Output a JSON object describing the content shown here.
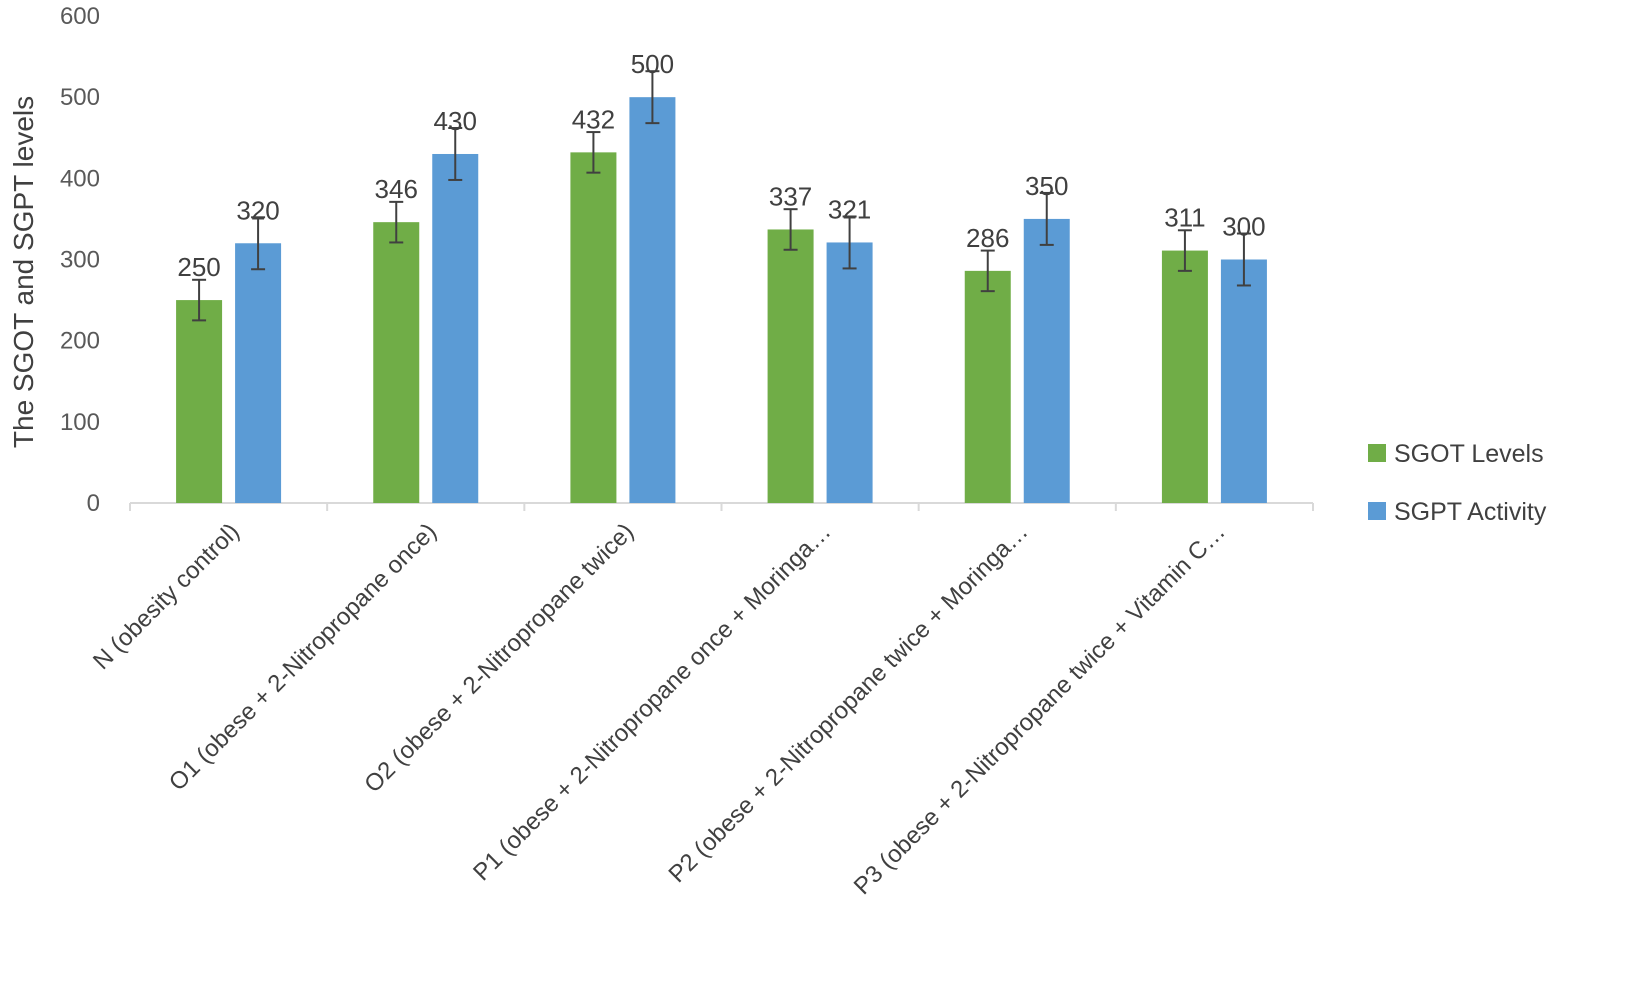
{
  "chart_data": {
    "type": "bar",
    "ylabel": "The SGOT and SGPT levels",
    "xlabel": "",
    "ylim": [
      0,
      600
    ],
    "yticks": [
      0,
      100,
      200,
      300,
      400,
      500,
      600
    ],
    "grid": false,
    "legend_position": "right",
    "categories": [
      "N (obesity control)",
      "O1 (obese + 2-Nitropropane once)",
      "O2 (obese + 2-Nitropropane twice)",
      "P1 (obese + 2-Nitropropane once + Moringa…",
      "P2 (obese + 2-Nitropropane twice + Moringa…",
      "P3 (obese + 2-Nitropropane twice + Vitamin C…"
    ],
    "series": [
      {
        "name": "SGOT Levels",
        "color": "#70ad47",
        "values": [
          250,
          346,
          432,
          337,
          286,
          311
        ],
        "labels": [
          "250",
          "346",
          "432",
          "337",
          "286",
          "311"
        ],
        "error": [
          25,
          25,
          25,
          25,
          25,
          25
        ]
      },
      {
        "name": "SGPT Activity",
        "color": "#5b9bd5",
        "values": [
          320,
          430,
          500,
          321,
          350,
          300
        ],
        "labels": [
          "320",
          "430",
          "500",
          "321",
          "350",
          "300"
        ],
        "error": [
          32,
          32,
          32,
          32,
          32,
          32
        ]
      }
    ]
  }
}
